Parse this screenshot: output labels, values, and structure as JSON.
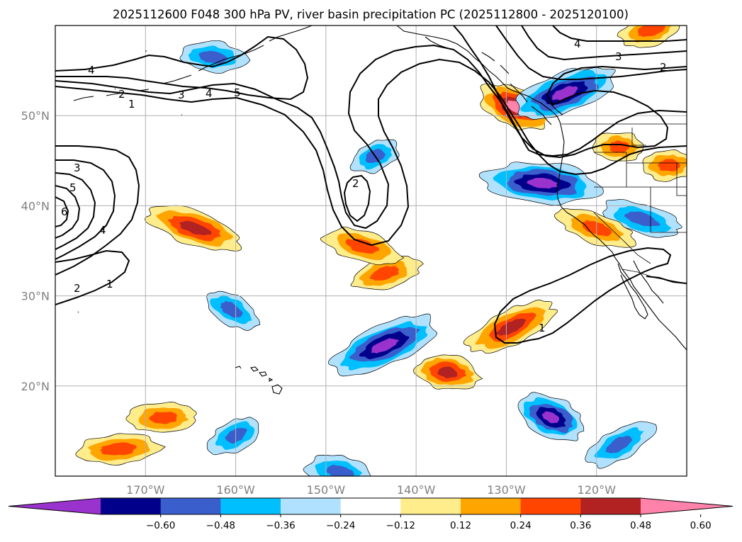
{
  "title": "2025112600 F048 300 hPa PV, river basin precipitation PC (2025112800 - 2025120100)",
  "map": {
    "projection": "lat-lon",
    "extent": {
      "lon": [
        -180,
        -110
      ],
      "lat": [
        10,
        60
      ]
    },
    "lon_ticks": [
      {
        "lon": -170,
        "label": "170°W"
      },
      {
        "lon": -160,
        "label": "160°W"
      },
      {
        "lon": -150,
        "label": "150°W"
      },
      {
        "lon": -140,
        "label": "140°W"
      },
      {
        "lon": -130,
        "label": "130°W"
      },
      {
        "lon": -120,
        "label": "120°W"
      }
    ],
    "lat_ticks": [
      {
        "lat": 50,
        "label": "50°N"
      },
      {
        "lat": 40,
        "label": "40°N"
      },
      {
        "lat": 30,
        "label": "30°N"
      },
      {
        "lat": 20,
        "label": "20°N"
      }
    ],
    "gridlines": true,
    "pv_contour_labels": [
      "1",
      "2",
      "3",
      "4",
      "5",
      "6"
    ]
  },
  "colorbar": {
    "orientation": "horizontal",
    "extend": "both",
    "colors": [
      "#9a32cd",
      "#00008b",
      "#3a5fcd",
      "#00bfff",
      "#b0e2ff",
      "#ffffff",
      "#ffec8b",
      "#ffa500",
      "#ff4500",
      "#b22222",
      "#ff82ab"
    ],
    "ticks": [
      "−0.60",
      "−0.48",
      "−0.36",
      "−0.24",
      "−0.12",
      "0.12",
      "0.24",
      "0.36",
      "0.48",
      "0.60"
    ]
  },
  "chart_data": {
    "type": "heatmap",
    "title": "2025112600 F048 300 hPa PV, river basin precipitation PC (2025112800 - 2025120100)",
    "xlabel": "",
    "ylabel": "",
    "levels": [
      -0.6,
      -0.48,
      -0.36,
      -0.24,
      -0.12,
      0.12,
      0.24,
      0.36,
      0.48,
      0.6
    ],
    "precip_pc_features": [
      {
        "lon": -129.0,
        "lat": 51.0,
        "peak": 0.6
      },
      {
        "lon": -126.0,
        "lat": 42.5,
        "peak": -0.6
      },
      {
        "lon": -123.5,
        "lat": 52.5,
        "peak": -0.6
      },
      {
        "lon": -164.5,
        "lat": 37.5,
        "peak": 0.48
      },
      {
        "lon": -143.5,
        "lat": 24.5,
        "peak": -0.6
      },
      {
        "lon": -143.5,
        "lat": 32.5,
        "peak": 0.36
      },
      {
        "lon": -136.5,
        "lat": 21.5,
        "peak": 0.48
      },
      {
        "lon": -129.5,
        "lat": 26.5,
        "peak": 0.48
      },
      {
        "lon": -125.0,
        "lat": 16.5,
        "peak": -0.6
      },
      {
        "lon": -160.5,
        "lat": 28.5,
        "peak": -0.36
      },
      {
        "lon": -117.5,
        "lat": 13.5,
        "peak": -0.36
      },
      {
        "lon": -144.5,
        "lat": 45.5,
        "peak": -0.36
      },
      {
        "lon": -115.0,
        "lat": 38.5,
        "peak": -0.36
      },
      {
        "lon": -173.0,
        "lat": 13.0,
        "peak": 0.36
      },
      {
        "lon": -117.5,
        "lat": 46.5,
        "peak": 0.36
      },
      {
        "lon": -112.0,
        "lat": 44.5,
        "peak": 0.36
      },
      {
        "lon": -120.0,
        "lat": 37.5,
        "peak": 0.36
      },
      {
        "lon": -114.0,
        "lat": 59.5,
        "peak": 0.36
      },
      {
        "lon": -168.0,
        "lat": 16.5,
        "peak": 0.36
      },
      {
        "lon": -162.5,
        "lat": 56.5,
        "peak": -0.36
      },
      {
        "lon": -146.0,
        "lat": 35.5,
        "peak": 0.36
      },
      {
        "lon": -160.0,
        "lat": 14.5,
        "peak": -0.36
      },
      {
        "lon": -148.5,
        "lat": 10.5,
        "peak": -0.36
      }
    ]
  }
}
